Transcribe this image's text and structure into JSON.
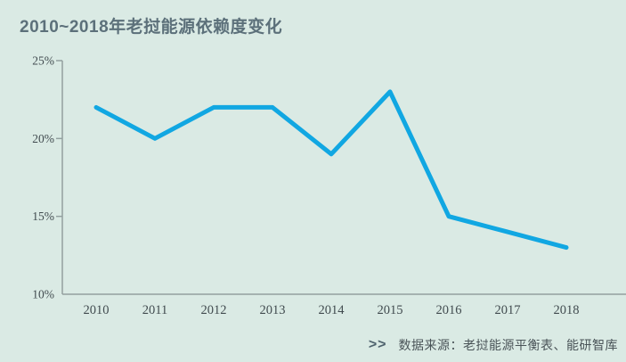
{
  "page": {
    "background_color": "#daeae4"
  },
  "title": "2010~2018年老挝能源依赖度变化",
  "source": {
    "chevrons": ">>",
    "text": "数据来源：老挝能源平衡表、能研智库"
  },
  "chart_data": {
    "type": "line",
    "title": "2010~2018年老挝能源依赖度变化",
    "categories": [
      "2010",
      "2011",
      "2012",
      "2013",
      "2014",
      "2015",
      "2016",
      "2017",
      "2018"
    ],
    "values": [
      22,
      20,
      22,
      22,
      19,
      23,
      15,
      14,
      13
    ],
    "xlabel": "",
    "ylabel": "",
    "ylim": [
      10,
      25
    ],
    "yticks": [
      25,
      20,
      15,
      10
    ],
    "ytick_labels": [
      "25%",
      "20%",
      "15%",
      "10%"
    ],
    "grid": false,
    "legend": null,
    "line_color": "#11a7e2",
    "line_width": 5,
    "axis_color": "#93a09f",
    "tick_label_color": "#414b4f"
  }
}
